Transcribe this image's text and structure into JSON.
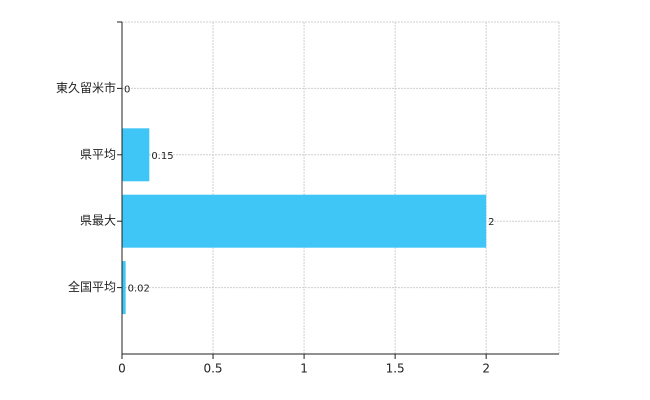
{
  "chart_data": {
    "type": "hbar",
    "categories": [
      "東久留米市",
      "県平均",
      "県最大",
      "全国平均"
    ],
    "values": [
      0,
      0.15,
      2,
      0.02
    ],
    "color": "#3fc6f7",
    "xlim": [
      0,
      2.4
    ],
    "xticks": [
      0,
      0.5,
      1,
      1.5,
      2
    ],
    "grid": true
  }
}
